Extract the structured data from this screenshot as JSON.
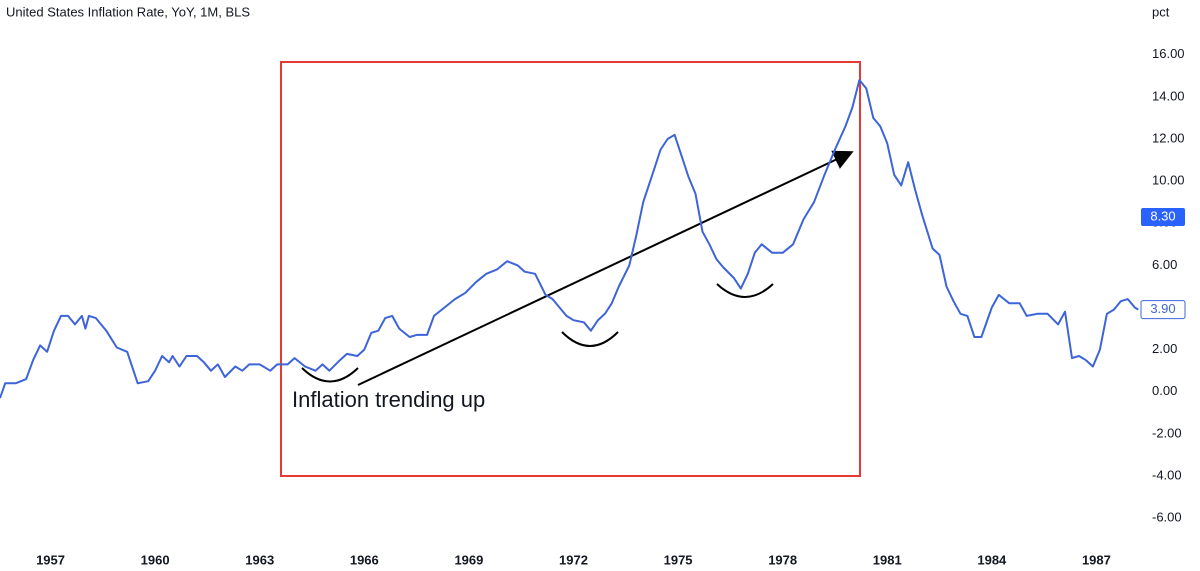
{
  "chart_data": {
    "type": "line",
    "title": "United States Inflation Rate, YoY, 1M, BLS",
    "y_unit": "pct",
    "annotation": "Inflation trending up",
    "series": [
      {
        "name": "United States Inflation Rate",
        "color": "#3d64d8",
        "x": [
          1955.55,
          1955.7,
          1956.0,
          1956.3,
          1956.5,
          1956.7,
          1956.9,
          1957.1,
          1957.3,
          1957.5,
          1957.7,
          1957.9,
          1958.0,
          1958.1,
          1958.3,
          1958.6,
          1958.9,
          1959.2,
          1959.4,
          1959.5,
          1959.8,
          1960.0,
          1960.2,
          1960.4,
          1960.5,
          1960.7,
          1960.9,
          1961.2,
          1961.4,
          1961.6,
          1961.8,
          1962.0,
          1962.3,
          1962.5,
          1962.7,
          1963.0,
          1963.3,
          1963.5,
          1963.8,
          1964.0,
          1964.3,
          1964.6,
          1964.8,
          1965.0,
          1965.3,
          1965.5,
          1965.8,
          1966.0,
          1966.2,
          1966.4,
          1966.6,
          1966.8,
          1967.0,
          1967.3,
          1967.5,
          1967.8,
          1968.0,
          1968.3,
          1968.6,
          1968.9,
          1969.2,
          1969.5,
          1969.8,
          1970.1,
          1970.4,
          1970.6,
          1970.9,
          1971.2,
          1971.4,
          1971.6,
          1971.8,
          1972.0,
          1972.3,
          1972.5,
          1972.7,
          1972.9,
          1973.1,
          1973.3,
          1973.6,
          1973.8,
          1974.0,
          1974.3,
          1974.5,
          1974.7,
          1974.9,
          1975.1,
          1975.3,
          1975.5,
          1975.7,
          1975.9,
          1976.1,
          1976.3,
          1976.6,
          1976.8,
          1977.0,
          1977.2,
          1977.4,
          1977.7,
          1978.0,
          1978.3,
          1978.6,
          1978.9,
          1979.2,
          1979.5,
          1979.8,
          1980.0,
          1980.2,
          1980.4,
          1980.6,
          1980.8,
          1981.0,
          1981.2,
          1981.4,
          1981.6,
          1981.8,
          1982.0,
          1982.3,
          1982.5,
          1982.7,
          1982.9,
          1983.1,
          1983.3,
          1983.5,
          1983.7,
          1984.0,
          1984.2,
          1984.5,
          1984.8,
          1985.0,
          1985.3,
          1985.6,
          1985.9,
          1986.1,
          1986.3,
          1986.5,
          1986.7,
          1986.9,
          1987.1,
          1987.3,
          1987.5,
          1987.7,
          1987.9,
          1988.1,
          1988.2
        ],
        "values": [
          -0.3,
          0.4,
          0.4,
          0.6,
          1.5,
          2.2,
          1.9,
          2.9,
          3.6,
          3.6,
          3.2,
          3.6,
          3.0,
          3.6,
          3.5,
          2.9,
          2.1,
          1.9,
          0.9,
          0.4,
          0.5,
          1.0,
          1.7,
          1.4,
          1.7,
          1.2,
          1.7,
          1.7,
          1.4,
          1.0,
          1.3,
          0.7,
          1.2,
          1.0,
          1.3,
          1.3,
          1.0,
          1.3,
          1.3,
          1.6,
          1.2,
          1.0,
          1.3,
          1.0,
          1.5,
          1.8,
          1.7,
          2.0,
          2.8,
          2.9,
          3.5,
          3.6,
          3.0,
          2.6,
          2.7,
          2.7,
          3.6,
          4.0,
          4.4,
          4.7,
          5.2,
          5.6,
          5.8,
          6.2,
          6.0,
          5.7,
          5.6,
          4.6,
          4.4,
          4.0,
          3.6,
          3.4,
          3.3,
          2.9,
          3.4,
          3.7,
          4.2,
          5.0,
          6.0,
          7.4,
          9.0,
          10.5,
          11.5,
          12.0,
          12.2,
          11.2,
          10.2,
          9.4,
          7.6,
          7.0,
          6.3,
          5.9,
          5.4,
          4.9,
          5.6,
          6.6,
          7.0,
          6.6,
          6.6,
          7.0,
          8.2,
          9.0,
          10.3,
          11.5,
          12.6,
          13.5,
          14.8,
          14.4,
          13.0,
          12.6,
          11.8,
          10.3,
          9.8,
          10.9,
          9.6,
          8.4,
          6.8,
          6.5,
          5.0,
          4.3,
          3.7,
          3.6,
          2.6,
          2.6,
          4.0,
          4.6,
          4.2,
          4.2,
          3.6,
          3.7,
          3.7,
          3.2,
          3.8,
          1.6,
          1.7,
          1.5,
          1.2,
          2.0,
          3.7,
          3.9,
          4.3,
          4.4,
          4.0,
          3.9
        ]
      }
    ],
    "xlim": [
      1955.55,
      1988.25
    ],
    "xticks": [
      1957,
      1960,
      1963,
      1966,
      1969,
      1972,
      1975,
      1978,
      1981,
      1984,
      1987
    ],
    "ylim": [
      -6.8,
      18.6
    ],
    "yticks": [
      {
        "value": -6,
        "label": "-6.00"
      },
      {
        "value": -4,
        "label": "-4.00"
      },
      {
        "value": -2,
        "label": "-2.00"
      },
      {
        "value": 0,
        "label": "0.00"
      },
      {
        "value": 2,
        "label": "2.00"
      },
      {
        "value": 4,
        "label": "4.00"
      },
      {
        "value": 6,
        "label": "6.00"
      },
      {
        "value": 8,
        "label": "8.00"
      },
      {
        "value": 10,
        "label": "10.00"
      },
      {
        "value": 12,
        "label": "12.00"
      },
      {
        "value": 14,
        "label": "14.00"
      },
      {
        "value": 16,
        "label": "16.00"
      }
    ],
    "marker_value": {
      "value": 8.3,
      "label": "8.30",
      "color": "#2962ff"
    },
    "last_value": {
      "value": 3.9,
      "label": "3.90"
    },
    "grid": false
  }
}
